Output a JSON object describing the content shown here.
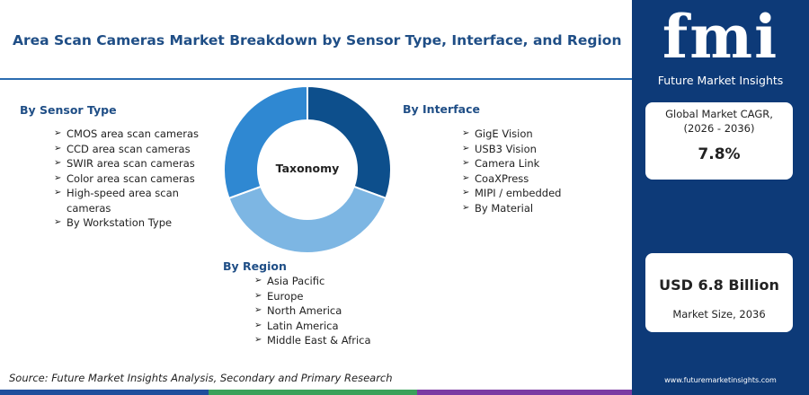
{
  "header": {
    "title": "Area Scan Cameras Market Breakdown by Sensor Type, Interface, and Region"
  },
  "center_label": "Taxonomy",
  "sections": [
    {
      "title": "By Sensor Type",
      "items": [
        "CMOS area scan cameras",
        "CCD area scan cameras",
        "SWIR area scan cameras",
        "Color area scan cameras",
        "High-speed area scan cameras",
        "By Workstation Type"
      ]
    },
    {
      "title": "By Interface",
      "items": [
        "GigE Vision",
        "USB3 Vision",
        "Camera Link",
        "CoaXPress",
        "MIPI / embedded",
        "By Material"
      ]
    },
    {
      "title": "By Region",
      "items": [
        "Asia Pacific",
        "Europe",
        "North America",
        "Latin America",
        "Middle East & Africa"
      ]
    }
  ],
  "brand": {
    "logo": "fmi",
    "name": "Future Market Insights",
    "website": "www.futuremarketinsights.com"
  },
  "stats": {
    "cagr": {
      "label": "Global Market CAGR,",
      "period": "(2026 - 2036)",
      "value": "7.8%"
    },
    "size": {
      "value": "USD 6.8 Billion",
      "label": "Market Size, 2036"
    }
  },
  "source": "Source: Future Market Insights Analysis, Secondary and Primary Research"
}
